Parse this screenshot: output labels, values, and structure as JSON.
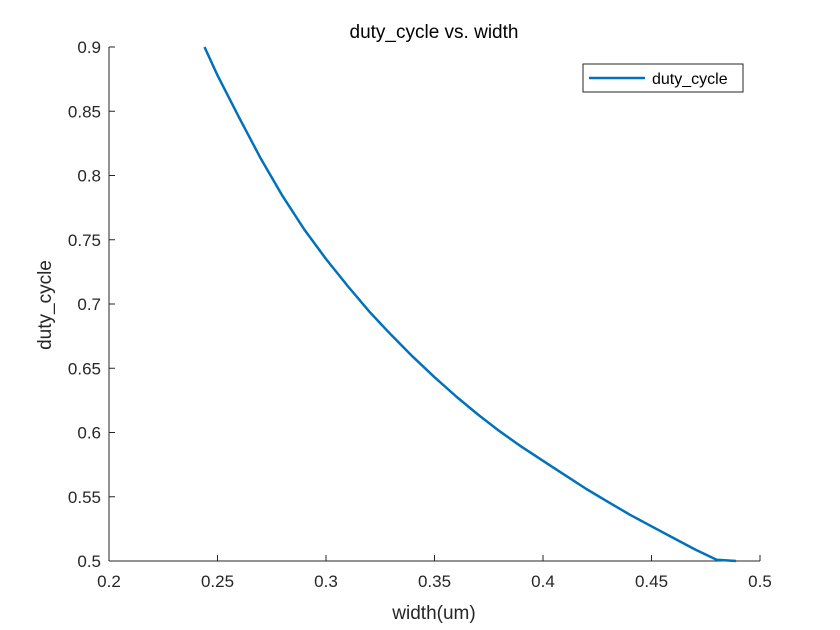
{
  "chart_data": {
    "type": "line",
    "title": "duty_cycle vs. width",
    "xlabel": "width(um)",
    "ylabel": "duty_cycle",
    "xlim": [
      0.2,
      0.5
    ],
    "ylim": [
      0.5,
      0.9
    ],
    "x_ticks": [
      "0.2",
      "0.25",
      "0.3",
      "0.35",
      "0.4",
      "0.45",
      "0.5"
    ],
    "y_ticks": [
      "0.5",
      "0.55",
      "0.6",
      "0.65",
      "0.7",
      "0.75",
      "0.8",
      "0.85",
      "0.9"
    ],
    "grid": false,
    "legend_position": "top-right",
    "series": [
      {
        "name": "duty_cycle",
        "color": "#0072BD",
        "x": [
          0.244,
          0.25,
          0.26,
          0.27,
          0.28,
          0.29,
          0.3,
          0.31,
          0.32,
          0.33,
          0.34,
          0.35,
          0.36,
          0.37,
          0.38,
          0.39,
          0.4,
          0.41,
          0.42,
          0.43,
          0.44,
          0.45,
          0.46,
          0.47,
          0.48,
          0.489
        ],
        "y": [
          0.9,
          0.878,
          0.845,
          0.813,
          0.784,
          0.758,
          0.735,
          0.714,
          0.694,
          0.676,
          0.659,
          0.643,
          0.628,
          0.614,
          0.601,
          0.589,
          0.578,
          0.567,
          0.556,
          0.546,
          0.536,
          0.527,
          0.518,
          0.509,
          0.501,
          0.5
        ]
      }
    ]
  }
}
